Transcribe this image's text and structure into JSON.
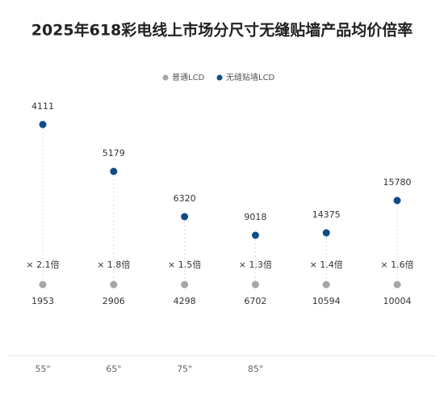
{
  "chart_data": {
    "type": "dot",
    "title": "2025年618彩电线上市场分尺寸无缝贴墙产品均价倍率",
    "categories": [
      "55\"",
      "65\"",
      "75\"",
      "85\"",
      null,
      null
    ],
    "series": [
      {
        "name": "普通LCD",
        "color": "#a6a6a6",
        "values": [
          1953,
          2906,
          4298,
          6702,
          10594,
          10004
        ]
      },
      {
        "name": "无缝贴墙LCD",
        "color": "#0f4c8a",
        "values": [
          4111,
          5179,
          6320,
          9018,
          14375,
          15780
        ]
      }
    ],
    "annotations": [
      "× 2.1倍",
      "× 1.8倍",
      "× 1.5倍",
      "× 1.3倍",
      "× 1.4倍",
      "× 1.6倍"
    ]
  }
}
